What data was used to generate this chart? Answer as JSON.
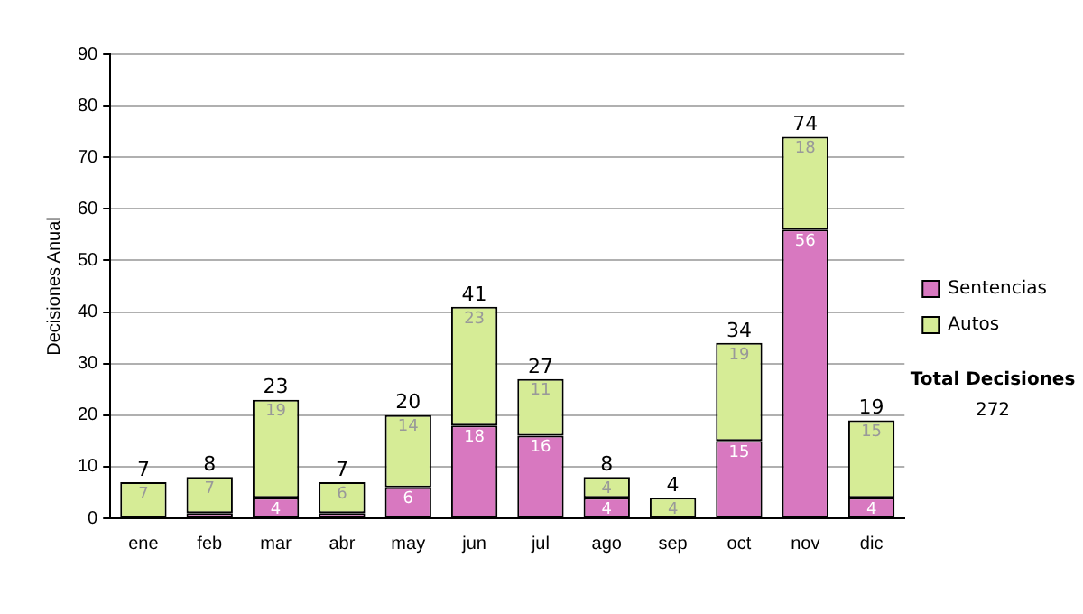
{
  "chart_data": {
    "type": "bar",
    "ylabel": "Decisiones Anual",
    "categories": [
      "ene",
      "feb",
      "mar",
      "abr",
      "may",
      "jun",
      "jul",
      "ago",
      "sep",
      "oct",
      "nov",
      "dic"
    ],
    "stacked": true,
    "series": [
      {
        "name": "Sentencias",
        "color": "#d878c0",
        "values": [
          0,
          1,
          4,
          1,
          6,
          18,
          16,
          4,
          0,
          15,
          56,
          4
        ],
        "value_labels": [
          null,
          null,
          "4",
          null,
          "6",
          "18",
          "16",
          "4",
          null,
          "15",
          "56",
          "4"
        ]
      },
      {
        "name": "Autos",
        "color": "#d6ec96",
        "values": [
          7,
          7,
          19,
          6,
          14,
          23,
          11,
          4,
          4,
          19,
          18,
          15
        ],
        "value_labels": [
          "7",
          "7",
          "19",
          "6",
          "14",
          "23",
          "11",
          "4",
          "4",
          "19",
          "18",
          "15"
        ]
      }
    ],
    "totals": [
      "7",
      "8",
      "23",
      "7",
      "20",
      "41",
      "27",
      "8",
      "4",
      "34",
      "74",
      "19"
    ],
    "ylim": [
      0,
      90
    ],
    "yticks": [
      0,
      10,
      20,
      30,
      40,
      50,
      60,
      70,
      80,
      90
    ],
    "grid": "y",
    "legend": "right",
    "annotations": [
      "Total Decisiones",
      "272"
    ]
  }
}
